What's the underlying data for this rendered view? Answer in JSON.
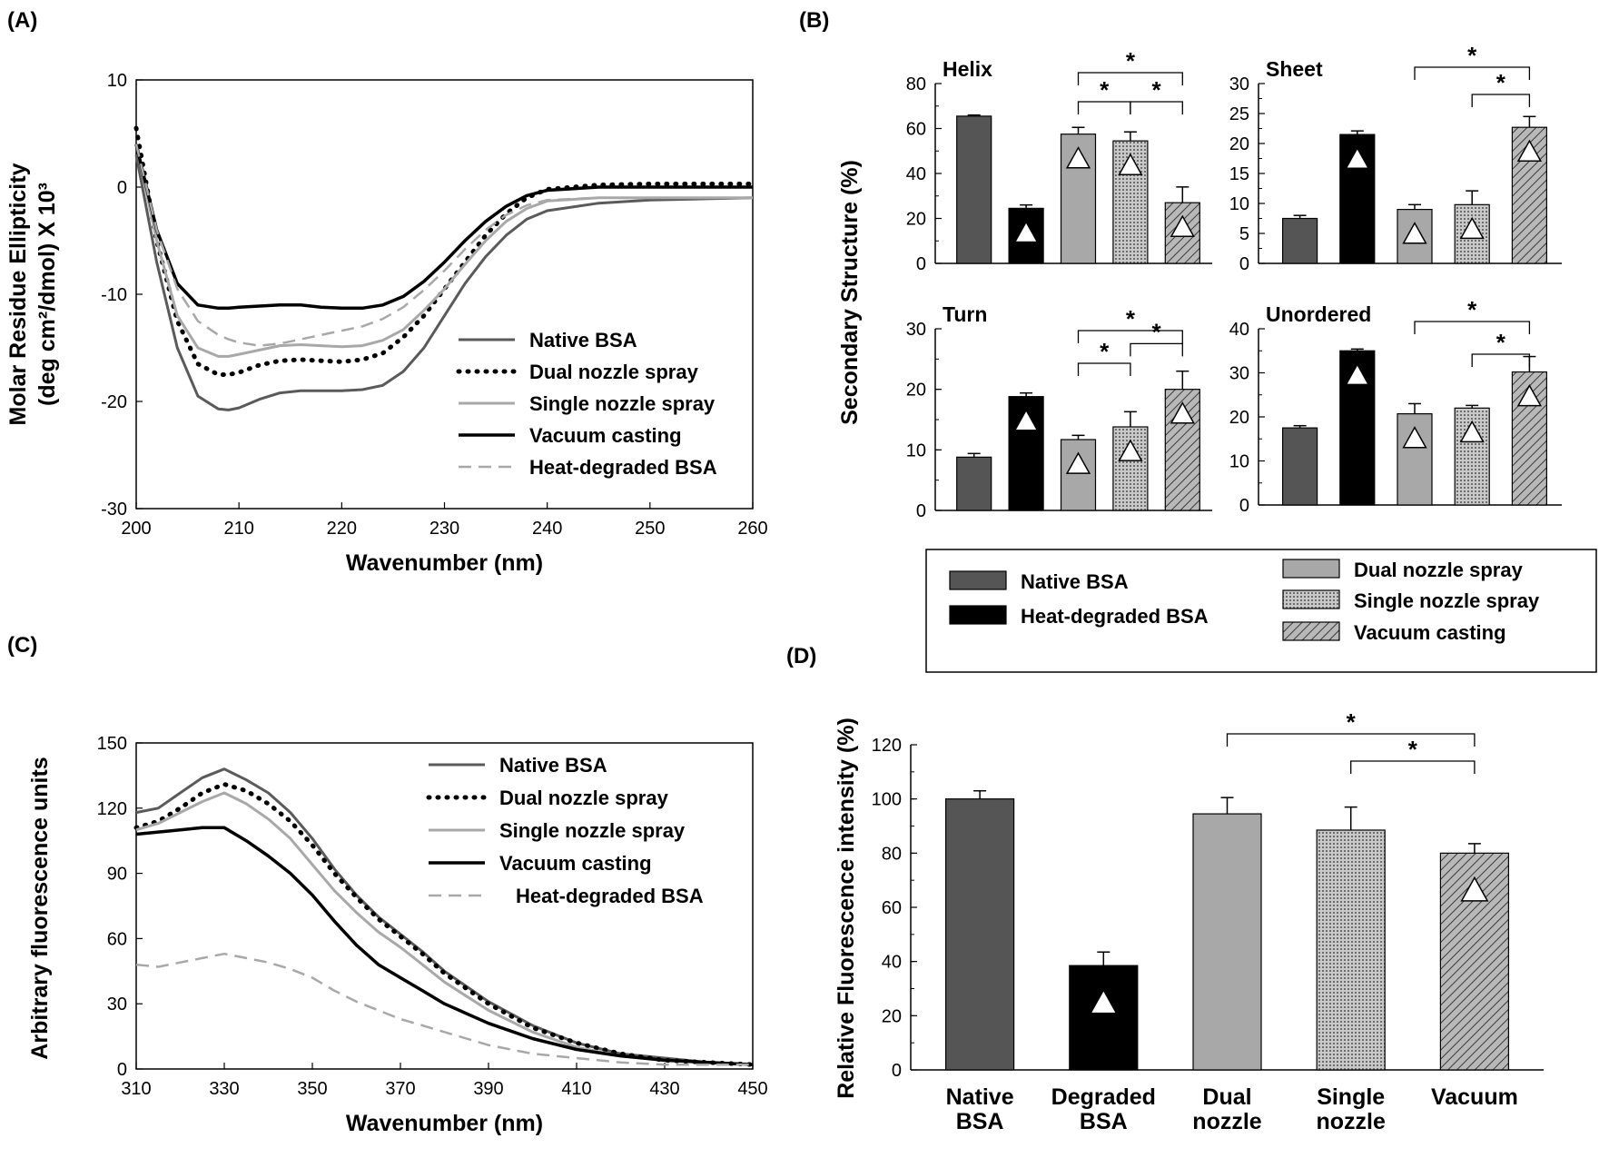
{
  "panel_labels": {
    "a": "(A)",
    "b": "(B)",
    "c": "(C)",
    "d": "(D)"
  },
  "b_ylabel": "Secondary Structure (%)",
  "colors": {
    "native": "#555555",
    "heat": "#000000",
    "dual": "#a8a8a8",
    "single": "#c8c8c8",
    "vacuum": "#b0b0b0"
  },
  "b_legend": [
    {
      "key": "native",
      "label": "Native BSA"
    },
    {
      "key": "heat",
      "label": "Heat-degraded BSA"
    },
    {
      "key": "dual",
      "label": "Dual nozzle spray"
    },
    {
      "key": "single",
      "label": "Single nozzle spray"
    },
    {
      "key": "vacuum",
      "label": "Vacuum casting"
    }
  ],
  "chart_data": [
    {
      "id": "A",
      "type": "line",
      "xlabel": "Wavenumber (nm)",
      "ylabel_line1": "Molar Residue Ellipticity",
      "ylabel_line2": "(deg cm²/dmol) X 10³",
      "xlim": [
        200,
        260
      ],
      "ylim": [
        -30,
        10
      ],
      "xticks": [
        200,
        210,
        220,
        230,
        240,
        250,
        260
      ],
      "yticks": [
        10,
        0,
        -10,
        -20,
        -30
      ],
      "legend_position": "right",
      "series": [
        {
          "name": "Native BSA",
          "style": "solid-dark",
          "x": [
            200,
            202,
            204,
            206,
            208,
            209,
            210,
            212,
            214,
            216,
            218,
            220,
            222,
            224,
            226,
            228,
            230,
            232,
            234,
            236,
            238,
            240,
            245,
            250,
            255,
            260
          ],
          "y": [
            3,
            -7,
            -15,
            -19.5,
            -20.7,
            -20.8,
            -20.6,
            -19.8,
            -19.2,
            -19,
            -19,
            -19,
            -18.9,
            -18.5,
            -17.2,
            -15,
            -12,
            -9,
            -6.5,
            -4.5,
            -3,
            -2.2,
            -1.5,
            -1.2,
            -1.1,
            -1
          ]
        },
        {
          "name": "Dual nozzle spray",
          "style": "dotted",
          "x": [
            200,
            202,
            204,
            206,
            208,
            209,
            210,
            212,
            214,
            216,
            218,
            220,
            222,
            224,
            226,
            228,
            230,
            232,
            234,
            236,
            238,
            240,
            245,
            250,
            255,
            260
          ],
          "y": [
            5.5,
            -5,
            -12.5,
            -16.5,
            -17.5,
            -17.5,
            -17.3,
            -16.6,
            -16.2,
            -16.1,
            -16.2,
            -16.3,
            -16.1,
            -15.5,
            -14,
            -12,
            -9.5,
            -7,
            -4.5,
            -2.5,
            -1,
            -0.2,
            0.2,
            0.3,
            0.3,
            0.3
          ]
        },
        {
          "name": "Single nozzle spray",
          "style": "solid-light",
          "x": [
            200,
            202,
            204,
            206,
            208,
            209,
            210,
            212,
            214,
            216,
            218,
            220,
            222,
            224,
            226,
            228,
            230,
            232,
            234,
            236,
            238,
            240,
            245,
            250,
            255,
            260
          ],
          "y": [
            4,
            -5,
            -12,
            -15,
            -15.8,
            -15.8,
            -15.6,
            -15.2,
            -14.8,
            -14.7,
            -14.8,
            -14.9,
            -14.8,
            -14.3,
            -13.3,
            -11.5,
            -9.5,
            -7.2,
            -5,
            -3.2,
            -2,
            -1.3,
            -1,
            -1,
            -1,
            -1
          ]
        },
        {
          "name": "Vacuum casting",
          "style": "solid-black",
          "x": [
            200,
            202,
            204,
            206,
            208,
            209,
            210,
            212,
            214,
            216,
            218,
            220,
            222,
            224,
            226,
            228,
            230,
            232,
            234,
            236,
            238,
            240,
            245,
            250,
            255,
            260
          ],
          "y": [
            4,
            -4,
            -9,
            -11,
            -11.3,
            -11.3,
            -11.2,
            -11.1,
            -11,
            -11,
            -11.2,
            -11.3,
            -11.3,
            -11,
            -10.2,
            -8.8,
            -7,
            -5,
            -3.2,
            -1.8,
            -0.8,
            -0.3,
            0,
            0,
            0,
            0
          ]
        },
        {
          "name": "Heat-degraded BSA",
          "style": "dashed",
          "x": [
            200,
            202,
            204,
            206,
            208,
            209,
            210,
            212,
            214,
            216,
            218,
            220,
            222,
            224,
            226,
            228,
            230,
            232,
            234,
            236,
            238,
            240,
            245,
            250,
            255,
            260
          ],
          "y": [
            4,
            -4,
            -9.5,
            -12.5,
            -13.8,
            -14.2,
            -14.5,
            -14.8,
            -14.6,
            -14.2,
            -13.8,
            -13.4,
            -13,
            -12.3,
            -11.2,
            -9.6,
            -7.8,
            -5.8,
            -4,
            -2.6,
            -1.7,
            -1.2,
            -1,
            -1,
            -1,
            -1
          ]
        }
      ]
    },
    {
      "id": "B-Helix",
      "type": "bar",
      "title": "Helix",
      "categories": [
        "Native BSA",
        "Heat-degraded BSA",
        "Dual nozzle spray",
        "Single nozzle spray",
        "Vacuum casting"
      ],
      "values": [
        65.5,
        24.5,
        57.5,
        54.5,
        27
      ],
      "errors": [
        0.5,
        1.5,
        3,
        4,
        7
      ],
      "triangles": [
        false,
        true,
        true,
        true,
        true
      ],
      "ylim": [
        0,
        80
      ],
      "yticks": [
        0,
        20,
        40,
        60,
        80
      ],
      "significance": [
        {
          "from": 2,
          "to": 4,
          "level": 1,
          "label": "*"
        },
        {
          "from": 2,
          "to": 3,
          "level": 0,
          "label": "*"
        },
        {
          "from": 3,
          "to": 4,
          "level": 0,
          "label": "*"
        }
      ]
    },
    {
      "id": "B-Sheet",
      "type": "bar",
      "title": "Sheet",
      "categories": [
        "Native BSA",
        "Heat-degraded BSA",
        "Dual nozzle spray",
        "Single nozzle spray",
        "Vacuum casting"
      ],
      "values": [
        7.5,
        21.5,
        9,
        9.8,
        22.7
      ],
      "errors": [
        0.5,
        0.6,
        0.8,
        2.3,
        1.8
      ],
      "triangles": [
        false,
        true,
        true,
        true,
        true
      ],
      "ylim": [
        0,
        30
      ],
      "yticks": [
        0,
        5,
        10,
        15,
        20,
        25,
        30
      ],
      "significance": [
        {
          "from": 2,
          "to": 4,
          "level": 1,
          "label": "*"
        },
        {
          "from": 3,
          "to": 4,
          "level": 0,
          "label": "*"
        }
      ]
    },
    {
      "id": "B-Turn",
      "type": "bar",
      "title": "Turn",
      "categories": [
        "Native BSA",
        "Heat-degraded BSA",
        "Dual nozzle spray",
        "Single nozzle spray",
        "Vacuum casting"
      ],
      "values": [
        8.8,
        18.8,
        11.7,
        13.8,
        20
      ],
      "errors": [
        0.6,
        0.6,
        0.7,
        2.5,
        3
      ],
      "triangles": [
        false,
        true,
        true,
        true,
        true
      ],
      "ylim": [
        0,
        30
      ],
      "yticks": [
        0,
        10,
        20,
        30
      ],
      "significance": [
        {
          "from": 2,
          "to": 4,
          "level": 1,
          "label": "*"
        },
        {
          "from": 2,
          "to": 3,
          "level": 0,
          "label": "*"
        },
        {
          "from": 3,
          "to": 4,
          "level": 0.6,
          "label": "*"
        }
      ]
    },
    {
      "id": "B-Unordered",
      "type": "bar",
      "title": "Unordered",
      "categories": [
        "Native BSA",
        "Heat-degraded BSA",
        "Dual nozzle spray",
        "Single nozzle spray",
        "Vacuum casting"
      ],
      "values": [
        17.5,
        35,
        20.7,
        22,
        30.2
      ],
      "errors": [
        0.5,
        0.4,
        2.3,
        0.6,
        3.5
      ],
      "triangles": [
        false,
        true,
        true,
        true,
        true
      ],
      "ylim": [
        0,
        40
      ],
      "yticks": [
        0,
        10,
        20,
        30,
        40
      ],
      "significance": [
        {
          "from": 2,
          "to": 4,
          "level": 1,
          "label": "*"
        },
        {
          "from": 3,
          "to": 4,
          "level": 0,
          "label": "*"
        }
      ]
    },
    {
      "id": "C",
      "type": "line",
      "xlabel": "Wavenumber (nm)",
      "ylabel": "Arbitrary fluorescence units",
      "xlim": [
        310,
        450
      ],
      "ylim": [
        0,
        150
      ],
      "xticks": [
        310,
        330,
        350,
        370,
        390,
        410,
        430,
        450
      ],
      "yticks": [
        0,
        30,
        60,
        90,
        120,
        150
      ],
      "legend_position": "top-right",
      "series": [
        {
          "name": "Native BSA",
          "style": "solid-dark",
          "x": [
            310,
            315,
            320,
            325,
            330,
            335,
            340,
            345,
            350,
            355,
            360,
            365,
            370,
            375,
            380,
            390,
            400,
            410,
            420,
            430,
            440,
            450
          ],
          "y": [
            118,
            120,
            127,
            134,
            138,
            133,
            127,
            118,
            106,
            92,
            80,
            70,
            62,
            54,
            45,
            31,
            20,
            12,
            7,
            5,
            3,
            2
          ]
        },
        {
          "name": "Dual nozzle spray",
          "style": "dotted",
          "x": [
            310,
            315,
            320,
            325,
            330,
            335,
            340,
            345,
            350,
            355,
            360,
            365,
            370,
            375,
            380,
            390,
            400,
            410,
            420,
            430,
            440,
            450
          ],
          "y": [
            111,
            114,
            120,
            127,
            131,
            128,
            122,
            114,
            103,
            90,
            79,
            69,
            61,
            53,
            44,
            30,
            19,
            12,
            7,
            4,
            3,
            2
          ]
        },
        {
          "name": "Single nozzle spray",
          "style": "solid-light",
          "x": [
            310,
            315,
            320,
            325,
            330,
            335,
            340,
            345,
            350,
            355,
            360,
            365,
            370,
            375,
            380,
            390,
            400,
            410,
            420,
            430,
            440,
            450
          ],
          "y": [
            110,
            113,
            118,
            123,
            127,
            122,
            115,
            106,
            94,
            82,
            72,
            63,
            56,
            48,
            40,
            27,
            17,
            10,
            6,
            4,
            3,
            2
          ]
        },
        {
          "name": "Vacuum casting",
          "style": "solid-black",
          "x": [
            310,
            315,
            320,
            325,
            330,
            335,
            340,
            345,
            350,
            355,
            360,
            365,
            370,
            375,
            380,
            390,
            400,
            410,
            420,
            430,
            440,
            450
          ],
          "y": [
            108,
            109,
            110,
            111,
            111,
            105,
            98,
            90,
            80,
            68,
            57,
            48,
            42,
            36,
            30,
            21,
            14,
            9,
            6,
            4,
            3,
            2
          ]
        },
        {
          "name": "Heat-degraded BSA",
          "style": "dashed",
          "x": [
            310,
            315,
            320,
            325,
            330,
            335,
            340,
            345,
            350,
            355,
            360,
            365,
            370,
            375,
            380,
            390,
            400,
            410,
            420,
            430,
            440,
            450
          ],
          "y": [
            48,
            47,
            49,
            51,
            53,
            51,
            49,
            46,
            42,
            36,
            31,
            27,
            23,
            20,
            17,
            11,
            7,
            5,
            3,
            2,
            2,
            2
          ]
        }
      ],
      "legend_labels": [
        "Native BSA",
        "Dual nozzle spray",
        "Single nozzle spray",
        "Vacuum casting",
        "Heat-degraded BSA"
      ]
    },
    {
      "id": "D",
      "type": "bar",
      "ylabel": "Relative Fluorescence intensity (%)",
      "categories": [
        [
          "Native",
          "BSA"
        ],
        [
          "Degraded",
          "BSA"
        ],
        [
          "Dual",
          "nozzle"
        ],
        [
          "Single",
          "nozzle"
        ],
        [
          "Vacuum"
        ]
      ],
      "series_keys": [
        "native",
        "heat",
        "dual",
        "single",
        "vacuum"
      ],
      "values": [
        100,
        38.5,
        94.5,
        88.5,
        80
      ],
      "errors": [
        3,
        5,
        6,
        8.5,
        3.5
      ],
      "triangles": [
        false,
        true,
        false,
        false,
        true
      ],
      "ylim": [
        0,
        120
      ],
      "yticks": [
        0,
        20,
        40,
        60,
        80,
        100,
        120
      ],
      "significance": [
        {
          "from": 2,
          "to": 4,
          "level": 1,
          "label": "*"
        },
        {
          "from": 3,
          "to": 4,
          "level": 0,
          "label": "*"
        }
      ]
    }
  ]
}
